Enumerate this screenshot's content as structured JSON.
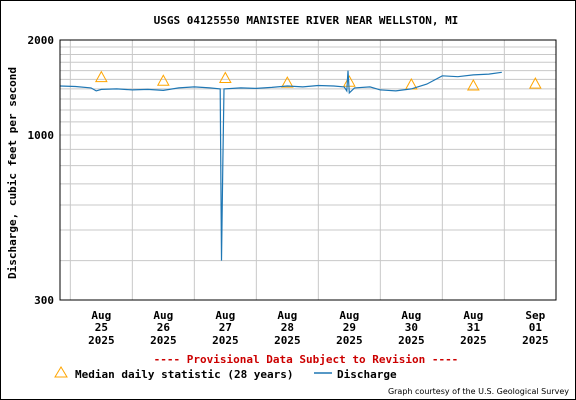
{
  "chart_data": {
    "type": "line",
    "title": "USGS 04125550 MANISTEE RIVER NEAR WELLSTON, MI",
    "ylabel": "Discharge, cubic feet per second",
    "y_scale": "log",
    "ylim": [
      300,
      2000
    ],
    "y_ticks": [
      {
        "value": 300,
        "label": "300"
      },
      {
        "value": 1000,
        "label": "1000"
      },
      {
        "value": 2000,
        "label": "2000"
      }
    ],
    "xlim": [
      "2025-08-24T20:00",
      "2025-09-01T20:00"
    ],
    "x_ticks": [
      {
        "month": "Aug",
        "day": "25",
        "year": "2025",
        "x": "2025-08-25T12:00"
      },
      {
        "month": "Aug",
        "day": "26",
        "year": "2025",
        "x": "2025-08-26T12:00"
      },
      {
        "month": "Aug",
        "day": "27",
        "year": "2025",
        "x": "2025-08-27T12:00"
      },
      {
        "month": "Aug",
        "day": "28",
        "year": "2025",
        "x": "2025-08-28T12:00"
      },
      {
        "month": "Aug",
        "day": "29",
        "year": "2025",
        "x": "2025-08-29T12:00"
      },
      {
        "month": "Aug",
        "day": "30",
        "year": "2025",
        "x": "2025-08-30T12:00"
      },
      {
        "month": "Aug",
        "day": "31",
        "year": "2025",
        "x": "2025-08-31T12:00"
      },
      {
        "month": "Sep",
        "day": "01",
        "year": "2025",
        "x": "2025-09-01T12:00"
      }
    ],
    "grid": true,
    "series": [
      {
        "name": "Median daily statistic (28 years)",
        "marker": "triangle",
        "color": "#ffa500",
        "points": [
          {
            "x": "2025-08-25T12:00",
            "y": 1520
          },
          {
            "x": "2025-08-26T12:00",
            "y": 1480
          },
          {
            "x": "2025-08-27T12:00",
            "y": 1510
          },
          {
            "x": "2025-08-28T12:00",
            "y": 1460
          },
          {
            "x": "2025-08-29T12:00",
            "y": 1470
          },
          {
            "x": "2025-08-30T12:00",
            "y": 1440
          },
          {
            "x": "2025-08-31T12:00",
            "y": 1430
          },
          {
            "x": "2025-09-01T12:00",
            "y": 1450
          }
        ]
      },
      {
        "name": "Discharge",
        "marker": "line",
        "color": "#1f77b4",
        "points": [
          {
            "x": "2025-08-24T20:00",
            "y": 1430
          },
          {
            "x": "2025-08-25T02:00",
            "y": 1425
          },
          {
            "x": "2025-08-25T08:00",
            "y": 1410
          },
          {
            "x": "2025-08-25T10:00",
            "y": 1380
          },
          {
            "x": "2025-08-25T12:00",
            "y": 1395
          },
          {
            "x": "2025-08-25T18:00",
            "y": 1400
          },
          {
            "x": "2025-08-26T00:00",
            "y": 1390
          },
          {
            "x": "2025-08-26T06:00",
            "y": 1395
          },
          {
            "x": "2025-08-26T12:00",
            "y": 1385
          },
          {
            "x": "2025-08-26T18:00",
            "y": 1410
          },
          {
            "x": "2025-08-27T00:00",
            "y": 1420
          },
          {
            "x": "2025-08-27T06:00",
            "y": 1410
          },
          {
            "x": "2025-08-27T10:00",
            "y": 1400
          },
          {
            "x": "2025-08-27T10:30",
            "y": 400
          },
          {
            "x": "2025-08-27T11:00",
            "y": 800
          },
          {
            "x": "2025-08-27T11:30",
            "y": 1400
          },
          {
            "x": "2025-08-27T18:00",
            "y": 1410
          },
          {
            "x": "2025-08-28T00:00",
            "y": 1405
          },
          {
            "x": "2025-08-28T06:00",
            "y": 1415
          },
          {
            "x": "2025-08-28T12:00",
            "y": 1430
          },
          {
            "x": "2025-08-28T18:00",
            "y": 1420
          },
          {
            "x": "2025-08-29T00:00",
            "y": 1435
          },
          {
            "x": "2025-08-29T06:00",
            "y": 1430
          },
          {
            "x": "2025-08-29T10:00",
            "y": 1420
          },
          {
            "x": "2025-08-29T11:00",
            "y": 1380
          },
          {
            "x": "2025-08-29T11:30",
            "y": 1600
          },
          {
            "x": "2025-08-29T12:00",
            "y": 1360
          },
          {
            "x": "2025-08-29T14:00",
            "y": 1410
          },
          {
            "x": "2025-08-29T20:00",
            "y": 1420
          },
          {
            "x": "2025-08-30T00:00",
            "y": 1390
          },
          {
            "x": "2025-08-30T06:00",
            "y": 1380
          },
          {
            "x": "2025-08-30T12:00",
            "y": 1400
          },
          {
            "x": "2025-08-30T18:00",
            "y": 1450
          },
          {
            "x": "2025-08-31T00:00",
            "y": 1540
          },
          {
            "x": "2025-08-31T06:00",
            "y": 1530
          },
          {
            "x": "2025-08-31T12:00",
            "y": 1550
          },
          {
            "x": "2025-08-31T18:00",
            "y": 1560
          },
          {
            "x": "2025-08-31T23:00",
            "y": 1580
          }
        ]
      }
    ]
  },
  "provisional_note": "---- Provisional Data Subject to Revision ----",
  "legend": {
    "median_label": "Median daily statistic (28 years)",
    "discharge_label": "Discharge"
  },
  "credit": "Graph courtesy of the U.S. Geological Survey",
  "colors": {
    "median": "#ffa500",
    "discharge": "#1f77b4",
    "provisional": "#cc0000",
    "grid": "#c8c8c8"
  }
}
